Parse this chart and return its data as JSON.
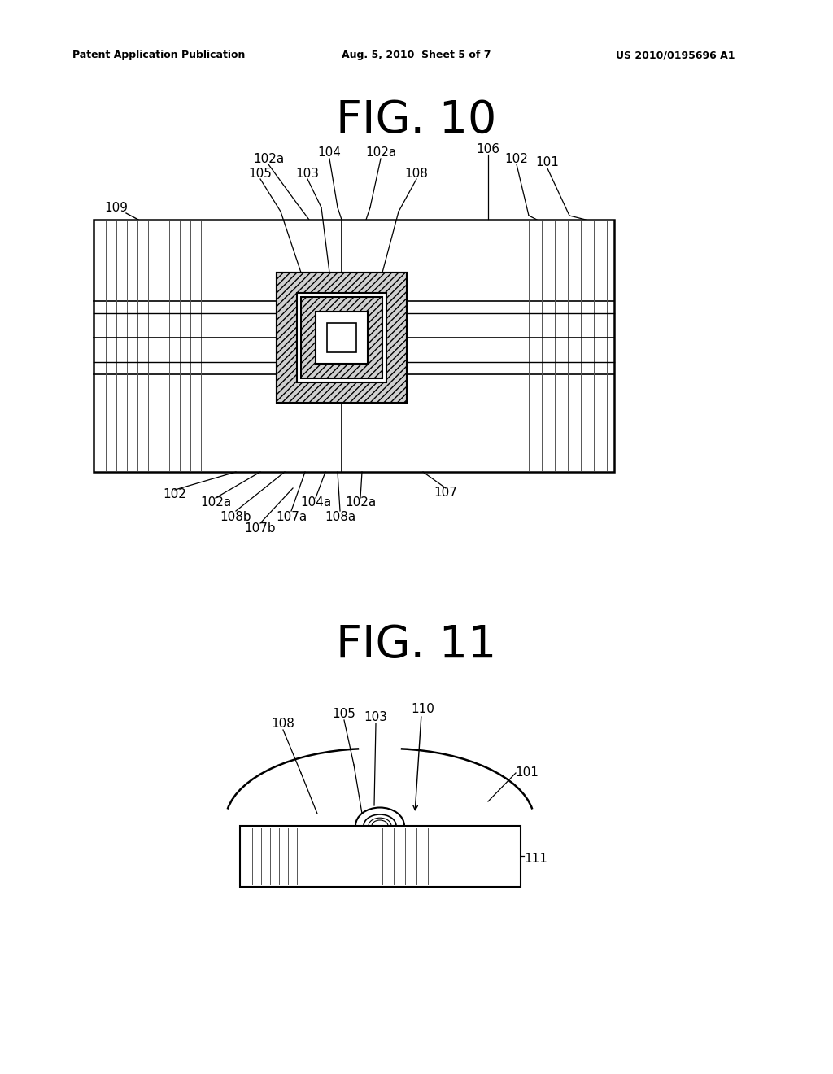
{
  "bg_color": "#ffffff",
  "header_left": "Patent Application Publication",
  "header_mid": "Aug. 5, 2010  Sheet 5 of 7",
  "header_right": "US 2010/0195696 A1",
  "fig10_title": "FIG. 10",
  "fig11_title": "FIG. 11"
}
